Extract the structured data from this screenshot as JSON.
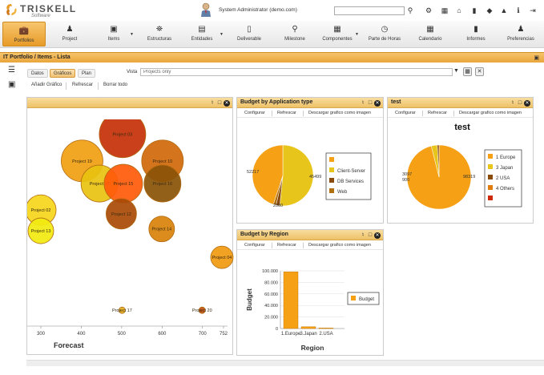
{
  "app": {
    "logo_text": "TRISKELL",
    "logo_sub": "Software",
    "user": "System Administrator (demo.com)",
    "search_placeholder": ""
  },
  "colors": {
    "accent": "#e89a28",
    "header_gradient_top": "#f8dd9f",
    "header_gradient_bottom": "#eec167",
    "slice_orange": "#f5a015",
    "slice_yellow": "#e8c51a",
    "slice_brown": "#8a4b0a",
    "slice_red": "#cc2a08"
  },
  "topbar_icons": [
    "search-icon",
    "settings-icon",
    "sitemap-icon",
    "home-icon",
    "bookmark-icon",
    "tag-icon",
    "warning-icon",
    "info-icon",
    "logout-icon"
  ],
  "nav": [
    {
      "label": "Portfolios",
      "icon": "briefcase-icon",
      "active": true
    },
    {
      "label": "Project",
      "icon": "people-icon",
      "dropdown": true
    },
    {
      "label": "Items",
      "icon": "box-icon",
      "dropdown": true
    },
    {
      "label": "Estructuras",
      "icon": "bank-icon"
    },
    {
      "label": "Entidades",
      "icon": "layers-icon",
      "dropdown": true
    },
    {
      "label": "Deliverable",
      "icon": "phone-icon"
    },
    {
      "label": "Milestone",
      "icon": "pin-icon"
    },
    {
      "label": "Componentes",
      "icon": "grid-icon",
      "dropdown": true
    },
    {
      "label": "Parte de Horas",
      "icon": "clock-icon"
    },
    {
      "label": "Calendario",
      "icon": "calendar-icon"
    },
    {
      "label": "Informes",
      "icon": "book-icon"
    },
    {
      "label": "Preferencias",
      "icon": "user-icon"
    }
  ],
  "page": {
    "title": "IT Portfolio / Items - Lista"
  },
  "tabs": [
    {
      "label": "Datos"
    },
    {
      "label": "Gráficos",
      "active": true
    },
    {
      "label": "Plan"
    }
  ],
  "vista": {
    "label": "Vista",
    "value": "Projects only"
  },
  "actions": [
    "Añadir Gráfico",
    "Refrescar",
    "Borrar todo"
  ],
  "panel_actions": {
    "configure": "Configurar",
    "refresh": "Refrescar",
    "download": "Descargar grafico como imagen"
  },
  "chart_data": [
    {
      "type": "scatter",
      "panel": "bubble",
      "xlabel": "Forecast",
      "xticks": [
        300,
        400,
        500,
        600,
        700,
        752
      ],
      "xlim": [
        268,
        752
      ],
      "ylim": [
        0,
        100
      ],
      "points": [
        {
          "label": "Project 03",
          "x": 502,
          "y": 98,
          "r": 29,
          "color": "#c43006"
        },
        {
          "label": "Project 19",
          "x": 402,
          "y": 84,
          "r": 26,
          "color": "#f0a010"
        },
        {
          "label": "Project 10",
          "x": 601,
          "y": 84,
          "r": 26,
          "color": "#d0680a"
        },
        {
          "label": "Project 08",
          "x": 445,
          "y": 72,
          "r": 23,
          "color": "#e8c210"
        },
        {
          "label": "Project 15",
          "x": 504,
          "y": 72,
          "r": 24,
          "color": "#ff5a0a"
        },
        {
          "label": "Project 16",
          "x": 601,
          "y": 72,
          "r": 23,
          "color": "#8a5206"
        },
        {
          "label": "Project 02",
          "x": 300,
          "y": 58,
          "r": 19,
          "color": "#f6d51a"
        },
        {
          "label": "Project 12",
          "x": 499,
          "y": 56,
          "r": 19,
          "color": "#a84a06"
        },
        {
          "label": "Project 13",
          "x": 300,
          "y": 47,
          "r": 16,
          "color": "#f2ea10"
        },
        {
          "label": "Project 14",
          "x": 599,
          "y": 48,
          "r": 16,
          "color": "#d8820a"
        },
        {
          "label": "Project 04",
          "x": 748,
          "y": 33,
          "r": 14,
          "color": "#f09a10"
        },
        {
          "label": "Project 17",
          "x": 501,
          "y": 5,
          "r": 4,
          "color": "#e8b020"
        },
        {
          "label": "Project 20",
          "x": 699,
          "y": 5,
          "r": 4,
          "color": "#c25010"
        }
      ]
    },
    {
      "type": "pie",
      "title": "Budget by Application type",
      "slices": [
        {
          "label": "Client-Server",
          "value": 52217,
          "color": "#e8c51a"
        },
        {
          "label": "DB Services",
          "value": 2000,
          "color": "#8a4b0a"
        },
        {
          "label": "Web",
          "value": 1500,
          "color": "#b07010"
        },
        {
          "label": "",
          "value": 45499,
          "color": "#f5a015"
        }
      ],
      "legend_labels": [
        "",
        "Client-Server",
        "DB Services",
        "Web"
      ],
      "legend_colors": [
        "#f5a015",
        "#e8c51a",
        "#8a4b0a",
        "#b07010"
      ],
      "data_labels": [
        "52217",
        "45499",
        "2000"
      ]
    },
    {
      "type": "pie",
      "title": "test",
      "slices": [
        {
          "label": "1 Europe",
          "value": 98319,
          "color": "#f5a015"
        },
        {
          "label": "3 Japan",
          "value": 3097,
          "color": "#e8c51a"
        },
        {
          "label": "2 USA",
          "value": 900,
          "color": "#8a4b0a"
        }
      ],
      "legend_labels": [
        "1 Europe",
        "3 Japan",
        "2 USA",
        "4 Others",
        ""
      ],
      "legend_colors": [
        "#f5a015",
        "#e8c51a",
        "#8a4b0a",
        "#e07c10",
        "#cc2a08"
      ],
      "data_labels": [
        "98319",
        "3097",
        "900"
      ]
    },
    {
      "type": "bar",
      "title": "Budget by Region",
      "categories": [
        "1.Europe",
        "3.Japan",
        "2.USA"
      ],
      "values": [
        98319,
        3097,
        900
      ],
      "ylabel": "Budget",
      "xlabel": "Region",
      "ylim": [
        0,
        100000
      ],
      "yticks": [
        "0",
        "20.000",
        "40.000",
        "60.000",
        "80.000",
        "100.000"
      ],
      "legend": [
        "Budget"
      ],
      "color": "#f5a015"
    }
  ]
}
